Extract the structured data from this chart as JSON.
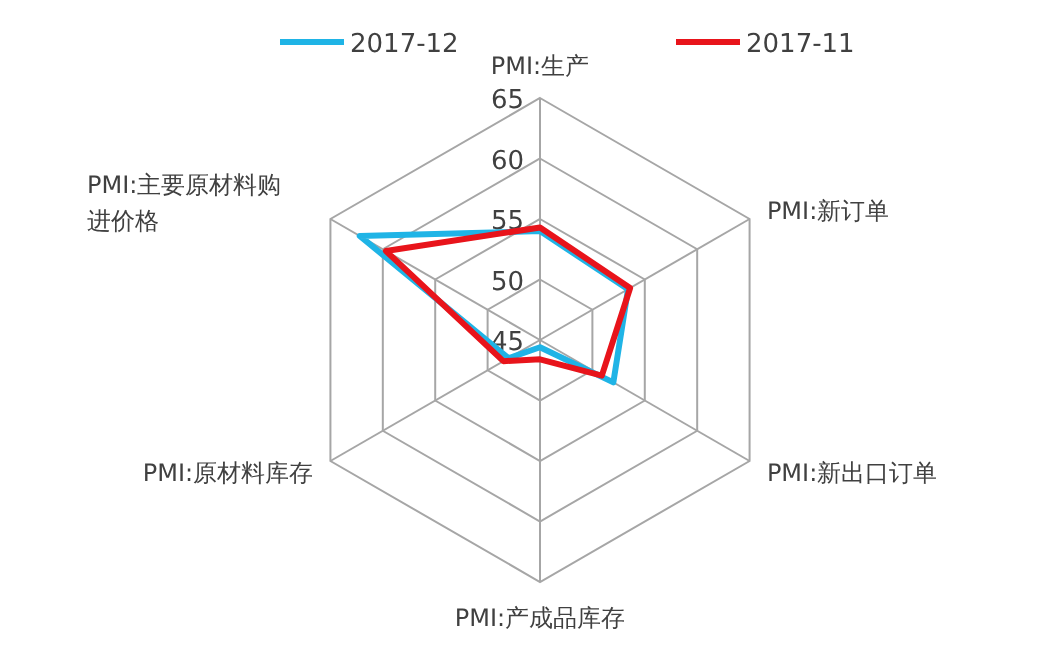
{
  "chart_data": {
    "type": "radar",
    "categories": [
      "PMI:生产",
      "PMI:新订单",
      "PMI:新出口订单",
      "PMI:产成品库存",
      "PMI:原材料库存",
      "PMI:主要原材料购进价格"
    ],
    "series": [
      {
        "name": "2017-12",
        "color": "#1fb4e6",
        "values": [
          54.0,
          53.4,
          52.0,
          45.6,
          48.0,
          62.2
        ]
      },
      {
        "name": "2017-11",
        "color": "#e8141b",
        "values": [
          54.3,
          53.6,
          50.9,
          46.6,
          48.5,
          59.7
        ]
      }
    ],
    "ylim": [
      45,
      65
    ],
    "yticks": [
      45,
      50,
      55,
      60,
      65
    ],
    "legend": "top",
    "grid": true
  }
}
